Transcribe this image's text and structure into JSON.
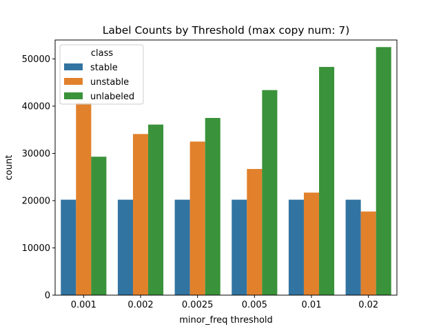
{
  "chart_data": {
    "type": "bar",
    "title": "Label Counts by Threshold (max copy num: 7)",
    "xlabel": "minor_freq threshold",
    "ylabel": "count",
    "categories": [
      "0.001",
      "0.002",
      "0.0025",
      "0.005",
      "0.01",
      "0.02"
    ],
    "ylim": [
      0,
      54000
    ],
    "yticks": [
      0,
      10000,
      20000,
      30000,
      40000,
      50000
    ],
    "legend": {
      "title": "class",
      "placement": "top-left"
    },
    "series": [
      {
        "name": "stable",
        "color": "#3274a1",
        "values": [
          20200,
          20200,
          20200,
          20200,
          20200,
          20200
        ]
      },
      {
        "name": "unstable",
        "color": "#e1812c",
        "values": [
          40700,
          34100,
          32500,
          26700,
          21700,
          17700
        ]
      },
      {
        "name": "unlabeled",
        "color": "#3a923a",
        "values": [
          29300,
          36100,
          37500,
          43400,
          48300,
          52500
        ]
      }
    ],
    "grid": false
  }
}
